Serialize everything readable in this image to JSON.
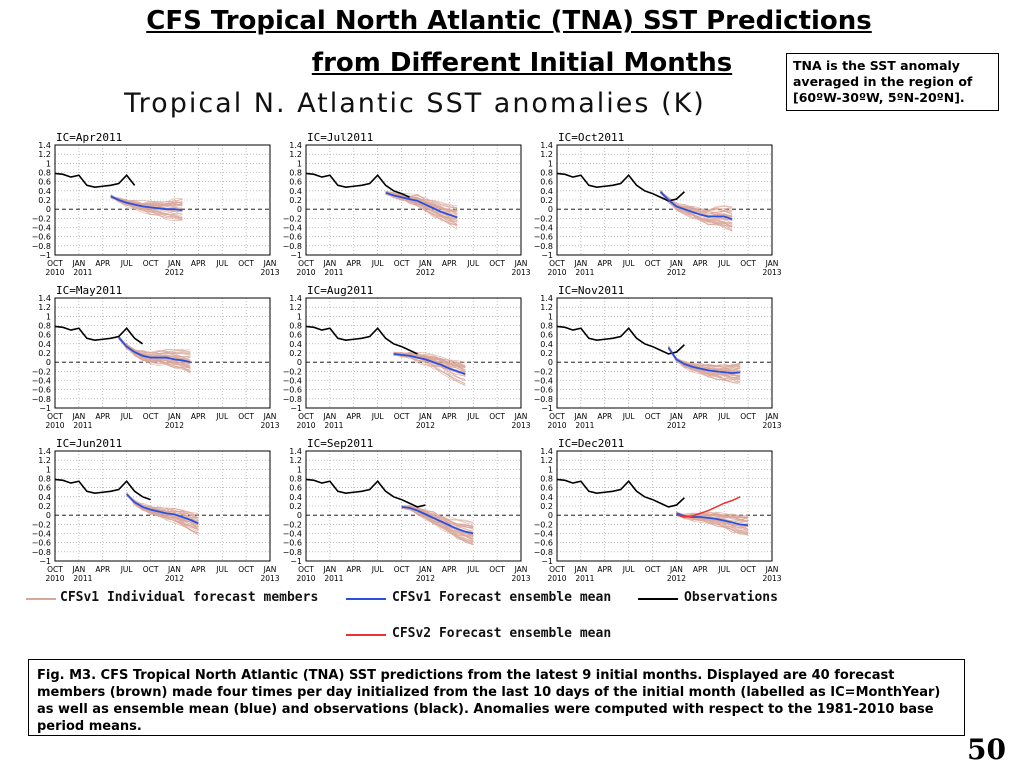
{
  "slide": {
    "title_line1": "CFS Tropical North Atlantic (TNA) SST Predictions",
    "title_line2": "from Different Initial Months",
    "note": "TNA is the SST anomaly averaged in the region of [60ºW-30ºW, 5ºN-20ºN].",
    "caption": "Fig. M3. CFS Tropical North Atlantic (TNA) SST predictions from the latest 9 initial months. Displayed are 40 forecast members (brown) made four times per day initialized from the last 10 days of the initial month (labelled as IC=MonthYear) as well as ensemble mean (blue) and observations (black). Anomalies were computed with respect to the 1981-2010 base period means.",
    "page_number": "50"
  },
  "colors": {
    "members": "#d9a79a",
    "cfsv1_mean": "#2b50e0",
    "cfsv2_mean": "#ee3030",
    "observations": "#000000"
  },
  "legend": {
    "members": "CFSv1 Individual forecast members",
    "cfsv1_mean": "CFSv1 Forecast ensemble mean",
    "observations": "Observations",
    "cfsv2_mean": "CFSv2 Forecast ensemble mean"
  },
  "chart_data": {
    "type": "line",
    "title": "Tropical N. Atlantic SST anomalies (K)",
    "x_ticks": [
      "OCT",
      "JAN",
      "APR",
      "JUL",
      "OCT",
      "JAN",
      "APR",
      "JUL",
      "OCT",
      "JAN"
    ],
    "x_year_labels": [
      "2010",
      "2011",
      "2012",
      "2013"
    ],
    "y_ticks": [
      "1.4",
      "1.2",
      "1",
      "0.8",
      "0.6",
      "0.4",
      "0.2",
      "0",
      "−0.2",
      "−0.4",
      "−0.6",
      "−0.8",
      "−1"
    ],
    "ylim": [
      -1,
      1.4
    ],
    "x_axis_note": "months since Oct 2010 (0 = Oct 2010, 27 = Jan 2013)",
    "observations": [
      {
        "x": 0,
        "y": 0.78
      },
      {
        "x": 1,
        "y": 0.76
      },
      {
        "x": 2,
        "y": 0.7
      },
      {
        "x": 3,
        "y": 0.74
      },
      {
        "x": 4,
        "y": 0.52
      },
      {
        "x": 5,
        "y": 0.48
      },
      {
        "x": 6,
        "y": 0.5
      },
      {
        "x": 7,
        "y": 0.52
      },
      {
        "x": 8,
        "y": 0.56
      },
      {
        "x": 9,
        "y": 0.74
      },
      {
        "x": 10,
        "y": 0.52
      },
      {
        "x": 11,
        "y": 0.4
      },
      {
        "x": 12,
        "y": 0.34
      },
      {
        "x": 13,
        "y": 0.26
      },
      {
        "x": 14,
        "y": 0.18
      },
      {
        "x": 15,
        "y": 0.22
      },
      {
        "x": 16,
        "y": 0.38
      }
    ],
    "panels": [
      {
        "label": "IC=Apr2011",
        "cfsv1_mean": [
          {
            "x": 7,
            "y": 0.28
          },
          {
            "x": 8,
            "y": 0.2
          },
          {
            "x": 9,
            "y": 0.14
          },
          {
            "x": 10,
            "y": 0.1
          },
          {
            "x": 11,
            "y": 0.06
          },
          {
            "x": 12,
            "y": 0.04
          },
          {
            "x": 13,
            "y": 0.02
          },
          {
            "x": 14,
            "y": 0.0
          },
          {
            "x": 15,
            "y": 0.0
          },
          {
            "x": 16,
            "y": -0.02
          }
        ]
      },
      {
        "label": "IC=Jul2011",
        "cfsv1_mean": [
          {
            "x": 10,
            "y": 0.36
          },
          {
            "x": 11,
            "y": 0.3
          },
          {
            "x": 12,
            "y": 0.26
          },
          {
            "x": 13,
            "y": 0.22
          },
          {
            "x": 14,
            "y": 0.18
          },
          {
            "x": 15,
            "y": 0.1
          },
          {
            "x": 16,
            "y": 0.02
          },
          {
            "x": 17,
            "y": -0.06
          },
          {
            "x": 18,
            "y": -0.12
          },
          {
            "x": 19,
            "y": -0.18
          }
        ]
      },
      {
        "label": "IC=Oct2011",
        "cfsv1_mean": [
          {
            "x": 13,
            "y": 0.38
          },
          {
            "x": 14,
            "y": 0.2
          },
          {
            "x": 15,
            "y": 0.06
          },
          {
            "x": 16,
            "y": 0.0
          },
          {
            "x": 17,
            "y": -0.06
          },
          {
            "x": 18,
            "y": -0.12
          },
          {
            "x": 19,
            "y": -0.16
          },
          {
            "x": 20,
            "y": -0.16
          },
          {
            "x": 21,
            "y": -0.16
          },
          {
            "x": 22,
            "y": -0.22
          }
        ]
      },
      {
        "label": "IC=May2011",
        "cfsv1_mean": [
          {
            "x": 8,
            "y": 0.54
          },
          {
            "x": 9,
            "y": 0.34
          },
          {
            "x": 10,
            "y": 0.22
          },
          {
            "x": 11,
            "y": 0.14
          },
          {
            "x": 12,
            "y": 0.1
          },
          {
            "x": 13,
            "y": 0.1
          },
          {
            "x": 14,
            "y": 0.1
          },
          {
            "x": 15,
            "y": 0.06
          },
          {
            "x": 16,
            "y": 0.04
          },
          {
            "x": 17,
            "y": 0.0
          }
        ]
      },
      {
        "label": "IC=Aug2011",
        "cfsv1_mean": [
          {
            "x": 11,
            "y": 0.18
          },
          {
            "x": 12,
            "y": 0.16
          },
          {
            "x": 13,
            "y": 0.14
          },
          {
            "x": 14,
            "y": 0.1
          },
          {
            "x": 15,
            "y": 0.06
          },
          {
            "x": 16,
            "y": 0.0
          },
          {
            "x": 17,
            "y": -0.06
          },
          {
            "x": 18,
            "y": -0.14
          },
          {
            "x": 19,
            "y": -0.2
          },
          {
            "x": 20,
            "y": -0.26
          }
        ]
      },
      {
        "label": "IC=Nov2011",
        "cfsv1_mean": [
          {
            "x": 14,
            "y": 0.32
          },
          {
            "x": 15,
            "y": 0.06
          },
          {
            "x": 16,
            "y": -0.04
          },
          {
            "x": 17,
            "y": -0.1
          },
          {
            "x": 18,
            "y": -0.14
          },
          {
            "x": 19,
            "y": -0.18
          },
          {
            "x": 20,
            "y": -0.2
          },
          {
            "x": 21,
            "y": -0.22
          },
          {
            "x": 22,
            "y": -0.24
          },
          {
            "x": 23,
            "y": -0.22
          }
        ]
      },
      {
        "label": "IC=Jun2011",
        "cfsv1_mean": [
          {
            "x": 9,
            "y": 0.46
          },
          {
            "x": 10,
            "y": 0.28
          },
          {
            "x": 11,
            "y": 0.18
          },
          {
            "x": 12,
            "y": 0.12
          },
          {
            "x": 13,
            "y": 0.08
          },
          {
            "x": 14,
            "y": 0.04
          },
          {
            "x": 15,
            "y": 0.02
          },
          {
            "x": 16,
            "y": -0.04
          },
          {
            "x": 17,
            "y": -0.1
          },
          {
            "x": 18,
            "y": -0.18
          }
        ]
      },
      {
        "label": "IC=Sep2011",
        "cfsv1_mean": [
          {
            "x": 12,
            "y": 0.18
          },
          {
            "x": 13,
            "y": 0.16
          },
          {
            "x": 14,
            "y": 0.1
          },
          {
            "x": 15,
            "y": 0.02
          },
          {
            "x": 16,
            "y": -0.06
          },
          {
            "x": 17,
            "y": -0.14
          },
          {
            "x": 18,
            "y": -0.22
          },
          {
            "x": 19,
            "y": -0.3
          },
          {
            "x": 20,
            "y": -0.36
          },
          {
            "x": 21,
            "y": -0.4
          }
        ]
      },
      {
        "label": "IC=Dec2011",
        "cfsv1_mean": [
          {
            "x": 15,
            "y": 0.04
          },
          {
            "x": 16,
            "y": -0.02
          },
          {
            "x": 17,
            "y": -0.04
          },
          {
            "x": 18,
            "y": -0.04
          },
          {
            "x": 19,
            "y": -0.06
          },
          {
            "x": 20,
            "y": -0.08
          },
          {
            "x": 21,
            "y": -0.12
          },
          {
            "x": 22,
            "y": -0.16
          },
          {
            "x": 23,
            "y": -0.2
          },
          {
            "x": 24,
            "y": -0.22
          }
        ],
        "cfsv2_mean": [
          {
            "x": 15,
            "y": 0.0
          },
          {
            "x": 16,
            "y": -0.04
          },
          {
            "x": 17,
            "y": -0.02
          },
          {
            "x": 18,
            "y": 0.04
          },
          {
            "x": 19,
            "y": 0.1
          },
          {
            "x": 20,
            "y": 0.18
          },
          {
            "x": 21,
            "y": 0.26
          },
          {
            "x": 22,
            "y": 0.32
          },
          {
            "x": 23,
            "y": 0.4
          }
        ]
      }
    ]
  }
}
